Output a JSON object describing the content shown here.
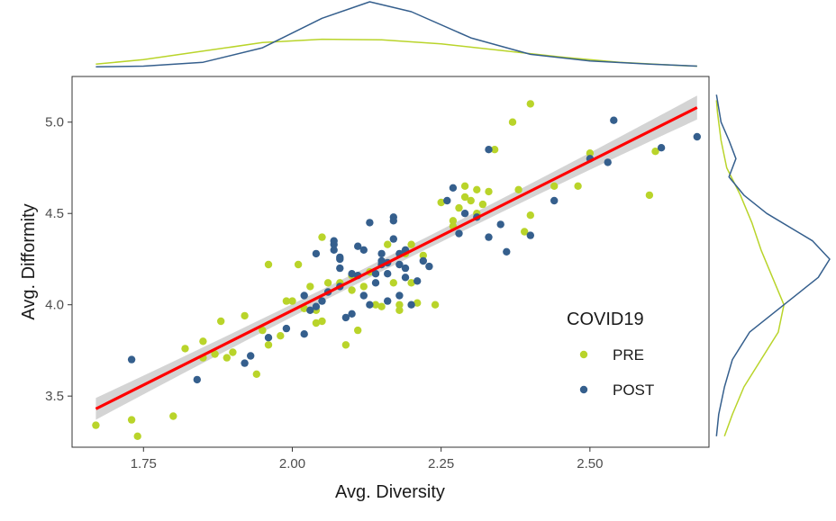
{
  "chart_data": {
    "type": "scatter",
    "title": "",
    "xlabel": "Avg. Diversity",
    "ylabel": "Avg. Difformity",
    "xlim": [
      1.63,
      2.7
    ],
    "ylim": [
      3.22,
      5.25
    ],
    "xticks": [
      1.75,
      2.0,
      2.25,
      2.5
    ],
    "xtick_labels": [
      "1.75",
      "2.00",
      "2.25",
      "2.50"
    ],
    "yticks": [
      3.5,
      4.0,
      4.5,
      5.0
    ],
    "ytick_labels": [
      "3.5",
      "4.0",
      "4.5",
      "5.0"
    ],
    "grid": false,
    "legend": {
      "title": "COVID19",
      "position": "inside-bottom-right",
      "entries": [
        {
          "label": "PRE",
          "color": "#b9d42a"
        },
        {
          "label": "POST",
          "color": "#355f8d"
        }
      ]
    },
    "series": [
      {
        "name": "PRE",
        "color": "#b9d42a",
        "points": [
          [
            1.67,
            3.34
          ],
          [
            1.73,
            3.37
          ],
          [
            1.74,
            3.28
          ],
          [
            1.8,
            3.39
          ],
          [
            1.82,
            3.76
          ],
          [
            1.85,
            3.8
          ],
          [
            1.85,
            3.71
          ],
          [
            1.87,
            3.73
          ],
          [
            1.88,
            3.91
          ],
          [
            1.89,
            3.71
          ],
          [
            1.9,
            3.74
          ],
          [
            1.92,
            3.94
          ],
          [
            1.94,
            3.62
          ],
          [
            1.96,
            3.78
          ],
          [
            1.96,
            4.22
          ],
          [
            1.98,
            3.83
          ],
          [
            1.99,
            4.02
          ],
          [
            2.0,
            4.02
          ],
          [
            2.01,
            4.22
          ],
          [
            2.03,
            4.1
          ],
          [
            2.04,
            3.9
          ],
          [
            2.04,
            3.97
          ],
          [
            2.05,
            3.91
          ],
          [
            2.05,
            4.37
          ],
          [
            2.06,
            4.12
          ],
          [
            2.08,
            4.12
          ],
          [
            2.09,
            3.78
          ],
          [
            2.1,
            4.08
          ],
          [
            2.1,
            4.16
          ],
          [
            2.11,
            3.86
          ],
          [
            2.12,
            4.1
          ],
          [
            2.13,
            4.18
          ],
          [
            2.14,
            4.0
          ],
          [
            2.15,
            3.99
          ],
          [
            2.16,
            4.33
          ],
          [
            2.17,
            4.12
          ],
          [
            2.18,
            4.0
          ],
          [
            2.18,
            3.97
          ],
          [
            2.19,
            4.28
          ],
          [
            2.2,
            4.33
          ],
          [
            2.21,
            4.01
          ],
          [
            2.22,
            4.27
          ],
          [
            2.24,
            4.0
          ],
          [
            2.25,
            4.56
          ],
          [
            2.27,
            4.43
          ],
          [
            2.27,
            4.46
          ],
          [
            2.28,
            4.53
          ],
          [
            2.29,
            4.59
          ],
          [
            2.29,
            4.65
          ],
          [
            2.3,
            4.57
          ],
          [
            2.31,
            4.63
          ],
          [
            2.31,
            4.5
          ],
          [
            2.32,
            4.55
          ],
          [
            2.33,
            4.62
          ],
          [
            2.34,
            4.85
          ],
          [
            2.37,
            5.0
          ],
          [
            2.38,
            4.63
          ],
          [
            2.39,
            4.4
          ],
          [
            2.4,
            4.49
          ],
          [
            2.4,
            5.1
          ],
          [
            2.44,
            4.65
          ],
          [
            2.48,
            4.65
          ],
          [
            2.5,
            4.83
          ],
          [
            2.6,
            4.6
          ],
          [
            2.61,
            4.84
          ],
          [
            2.2,
            4.12
          ],
          [
            2.02,
            3.98
          ],
          [
            1.95,
            3.86
          ]
        ]
      },
      {
        "name": "POST",
        "color": "#355f8d",
        "points": [
          [
            1.73,
            3.7
          ],
          [
            1.84,
            3.59
          ],
          [
            1.92,
            3.68
          ],
          [
            1.93,
            3.72
          ],
          [
            1.96,
            3.82
          ],
          [
            1.99,
            3.87
          ],
          [
            2.02,
            3.84
          ],
          [
            2.02,
            4.05
          ],
          [
            2.03,
            3.97
          ],
          [
            2.04,
            3.99
          ],
          [
            2.04,
            4.28
          ],
          [
            2.06,
            4.07
          ],
          [
            2.07,
            4.33
          ],
          [
            2.07,
            4.35
          ],
          [
            2.07,
            4.3
          ],
          [
            2.08,
            4.26
          ],
          [
            2.08,
            4.25
          ],
          [
            2.08,
            4.2
          ],
          [
            2.09,
            3.93
          ],
          [
            2.1,
            3.95
          ],
          [
            2.1,
            4.17
          ],
          [
            2.11,
            4.32
          ],
          [
            2.11,
            4.16
          ],
          [
            2.12,
            4.3
          ],
          [
            2.13,
            4.0
          ],
          [
            2.13,
            4.45
          ],
          [
            2.14,
            4.12
          ],
          [
            2.14,
            4.17
          ],
          [
            2.15,
            4.24
          ],
          [
            2.15,
            4.22
          ],
          [
            2.15,
            4.28
          ],
          [
            2.16,
            4.23
          ],
          [
            2.16,
            4.17
          ],
          [
            2.17,
            4.48
          ],
          [
            2.17,
            4.46
          ],
          [
            2.17,
            4.36
          ],
          [
            2.18,
            4.22
          ],
          [
            2.18,
            4.28
          ],
          [
            2.19,
            4.15
          ],
          [
            2.19,
            4.3
          ],
          [
            2.19,
            4.2
          ],
          [
            2.2,
            4.0
          ],
          [
            2.21,
            4.13
          ],
          [
            2.22,
            4.24
          ],
          [
            2.26,
            4.57
          ],
          [
            2.27,
            4.64
          ],
          [
            2.28,
            4.39
          ],
          [
            2.29,
            4.5
          ],
          [
            2.31,
            4.48
          ],
          [
            2.33,
            4.85
          ],
          [
            2.33,
            4.37
          ],
          [
            2.35,
            4.44
          ],
          [
            2.36,
            4.29
          ],
          [
            2.4,
            4.38
          ],
          [
            2.44,
            4.57
          ],
          [
            2.5,
            4.8
          ],
          [
            2.53,
            4.78
          ],
          [
            2.54,
            5.01
          ],
          [
            2.62,
            4.86
          ],
          [
            2.68,
            4.92
          ],
          [
            2.18,
            4.05
          ],
          [
            2.08,
            4.1
          ],
          [
            2.16,
            4.02
          ],
          [
            2.23,
            4.21
          ],
          [
            2.05,
            4.02
          ],
          [
            2.12,
            4.05
          ]
        ]
      }
    ],
    "regression": {
      "method": "lm",
      "color": "#ff0000",
      "ci_color": "#cccccc",
      "x": [
        1.67,
        2.68
      ],
      "y": [
        3.43,
        5.08
      ]
    },
    "marginal_x_density": {
      "PRE": [
        [
          1.67,
          0.05
        ],
        [
          1.75,
          0.12
        ],
        [
          1.85,
          0.25
        ],
        [
          1.95,
          0.38
        ],
        [
          2.05,
          0.43
        ],
        [
          2.15,
          0.42
        ],
        [
          2.25,
          0.36
        ],
        [
          2.35,
          0.26
        ],
        [
          2.45,
          0.16
        ],
        [
          2.55,
          0.08
        ],
        [
          2.65,
          0.03
        ],
        [
          2.68,
          0.02
        ]
      ],
      "POST": [
        [
          1.67,
          0.01
        ],
        [
          1.75,
          0.02
        ],
        [
          1.85,
          0.08
        ],
        [
          1.95,
          0.3
        ],
        [
          2.05,
          0.75
        ],
        [
          2.13,
          1.0
        ],
        [
          2.2,
          0.85
        ],
        [
          2.3,
          0.45
        ],
        [
          2.4,
          0.2
        ],
        [
          2.5,
          0.1
        ],
        [
          2.6,
          0.05
        ],
        [
          2.68,
          0.02
        ]
      ]
    },
    "marginal_y_density": {
      "PRE": [
        [
          3.28,
          0.08
        ],
        [
          3.4,
          0.15
        ],
        [
          3.55,
          0.25
        ],
        [
          3.7,
          0.4
        ],
        [
          3.85,
          0.55
        ],
        [
          4.0,
          0.6
        ],
        [
          4.15,
          0.5
        ],
        [
          4.3,
          0.4
        ],
        [
          4.45,
          0.32
        ],
        [
          4.6,
          0.22
        ],
        [
          4.75,
          0.1
        ],
        [
          4.9,
          0.05
        ],
        [
          5.05,
          0.02
        ],
        [
          5.12,
          0.01
        ]
      ],
      "POST": [
        [
          3.28,
          0.01
        ],
        [
          3.4,
          0.03
        ],
        [
          3.55,
          0.08
        ],
        [
          3.7,
          0.15
        ],
        [
          3.85,
          0.3
        ],
        [
          4.0,
          0.6
        ],
        [
          4.15,
          0.9
        ],
        [
          4.25,
          1.0
        ],
        [
          4.35,
          0.85
        ],
        [
          4.5,
          0.45
        ],
        [
          4.6,
          0.25
        ],
        [
          4.7,
          0.12
        ],
        [
          4.8,
          0.18
        ],
        [
          4.9,
          0.12
        ],
        [
          5.0,
          0.05
        ],
        [
          5.15,
          0.01
        ]
      ]
    }
  }
}
